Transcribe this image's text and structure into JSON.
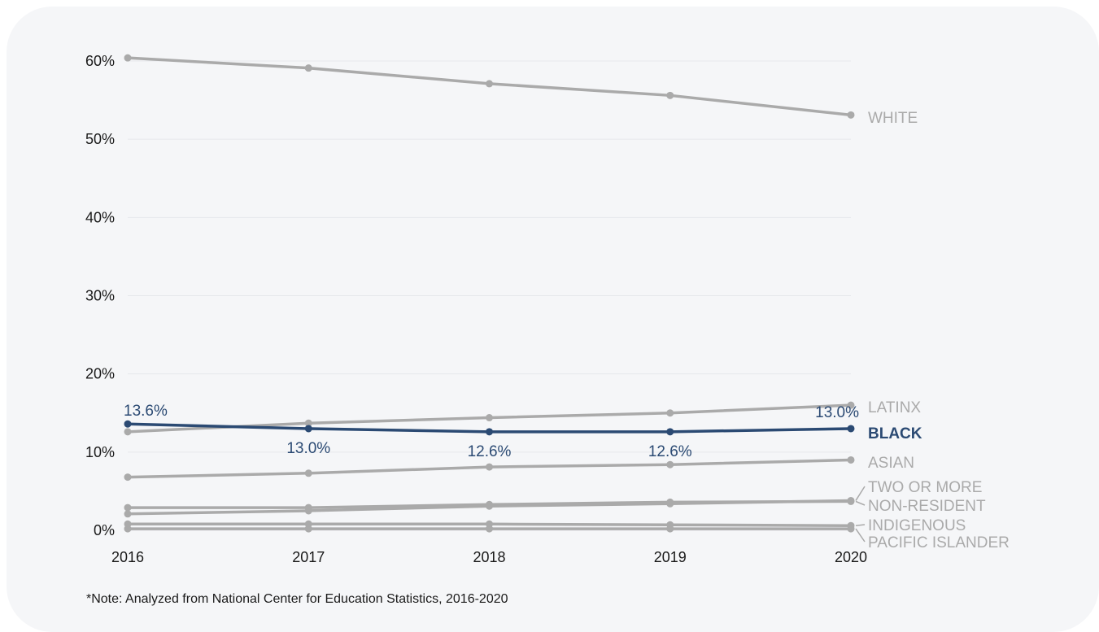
{
  "note": "*Note: Analyzed from National Center for Education Statistics, 2016-2020",
  "chart_data": {
    "type": "line",
    "x": [
      "2016",
      "2017",
      "2018",
      "2019",
      "2020"
    ],
    "ylim": [
      0,
      60
    ],
    "yticks": [
      0,
      10,
      20,
      30,
      40,
      50,
      60
    ],
    "ytick_labels": [
      "0%",
      "10%",
      "20%",
      "30%",
      "40%",
      "50%",
      "60%"
    ],
    "grid": true,
    "series": [
      {
        "name": "WHITE",
        "values": [
          60.4,
          59.1,
          57.1,
          55.6,
          53.1
        ],
        "color": "#aaaaaa"
      },
      {
        "name": "LATINX",
        "values": [
          12.6,
          13.7,
          14.4,
          15.0,
          16.0
        ],
        "color": "#aaaaaa"
      },
      {
        "name": "BLACK",
        "values": [
          13.6,
          13.0,
          12.6,
          12.6,
          13.0
        ],
        "color": "#2b4a73",
        "data_labels": [
          "13.6%",
          "13.0%",
          "12.6%",
          "12.6%",
          "13.0%"
        ]
      },
      {
        "name": "ASIAN",
        "values": [
          6.8,
          7.3,
          8.1,
          8.4,
          9.0
        ],
        "color": "#aaaaaa"
      },
      {
        "name": "TWO OR MORE",
        "values": [
          2.1,
          2.5,
          3.1,
          3.4,
          3.8
        ],
        "color": "#aaaaaa"
      },
      {
        "name": "NON-RESIDENT",
        "values": [
          2.9,
          2.9,
          3.3,
          3.6,
          3.7
        ],
        "color": "#aaaaaa"
      },
      {
        "name": "INDIGENOUS",
        "values": [
          0.8,
          0.8,
          0.8,
          0.7,
          0.6
        ],
        "color": "#aaaaaa"
      },
      {
        "name": "PACIFIC ISLANDER",
        "values": [
          0.2,
          0.2,
          0.2,
          0.2,
          0.2
        ],
        "color": "#aaaaaa"
      }
    ]
  }
}
